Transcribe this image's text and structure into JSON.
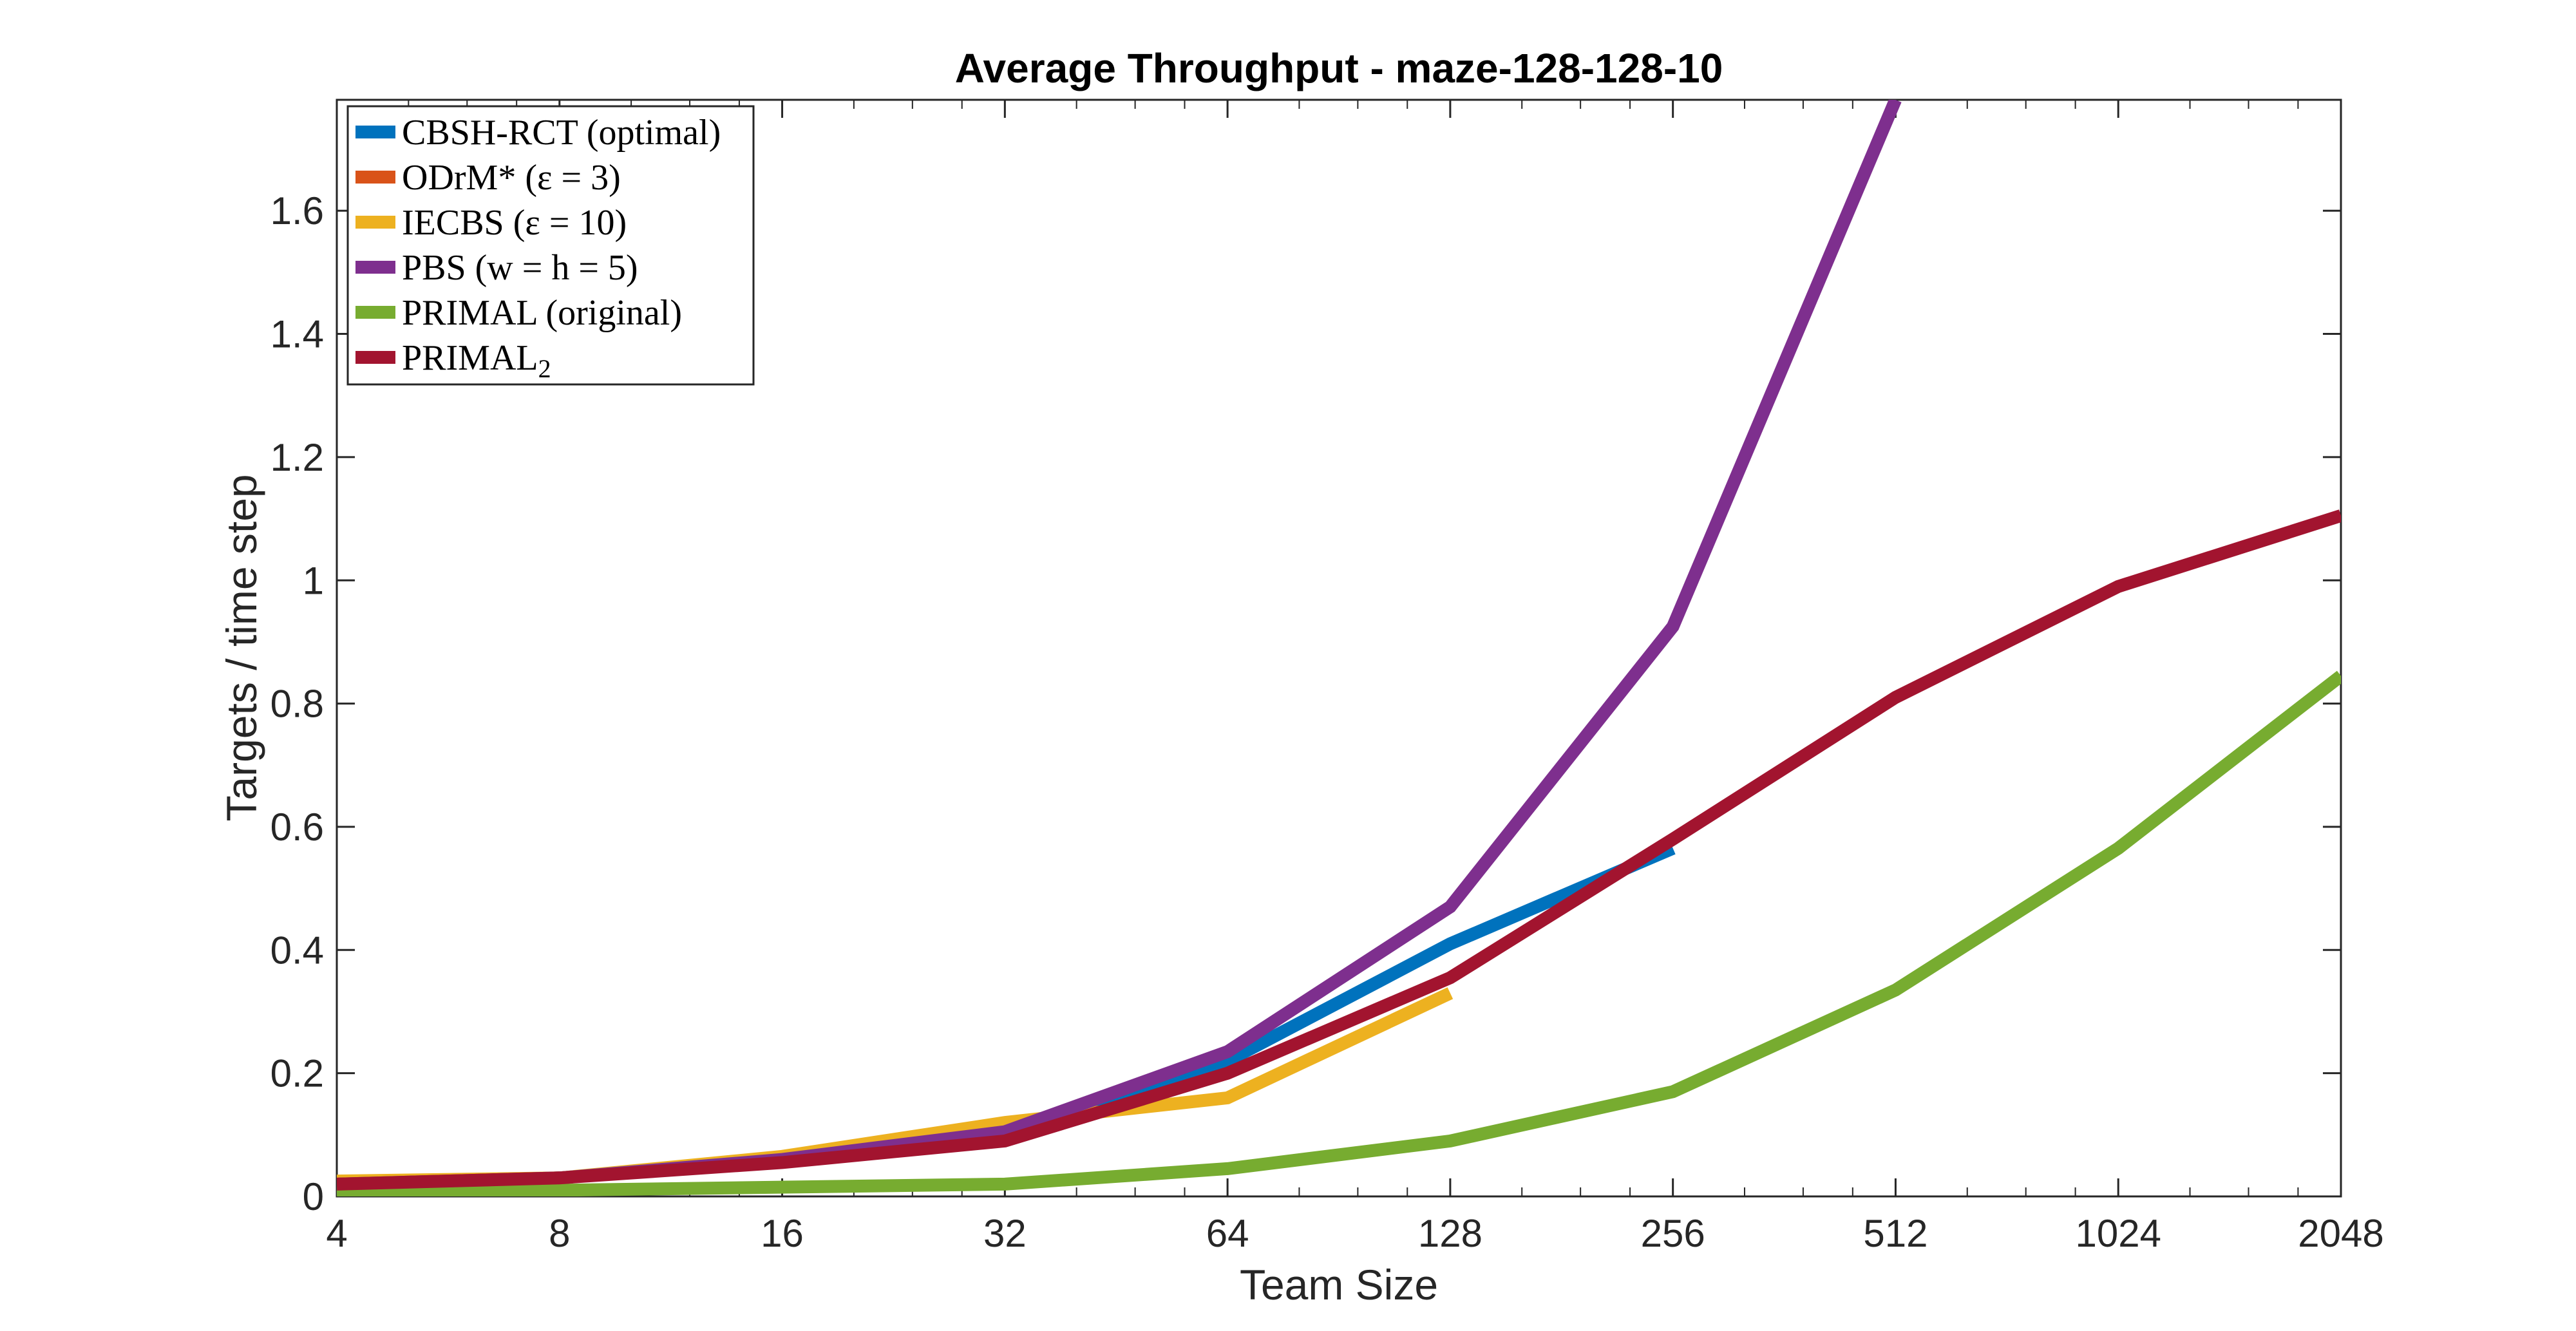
{
  "chart_data": {
    "type": "line",
    "title": "Average Throughput - maze-128-128-10",
    "xlabel": "Team Size",
    "ylabel": "Targets / time step",
    "x_scale": "log2",
    "xlim": [
      4,
      2048
    ],
    "ylim": [
      0,
      1.78
    ],
    "x_ticks": [
      "4",
      "8",
      "16",
      "32",
      "64",
      "128",
      "256",
      "512",
      "1024",
      "2048"
    ],
    "y_ticks": [
      "0",
      "0.2",
      "0.4",
      "0.6",
      "0.8",
      "1",
      "1.2",
      "1.4",
      "1.6"
    ],
    "grid": false,
    "legend_position": "top-left",
    "series": [
      {
        "name": "CBSH-RCT (optimal)",
        "color": "#0072BD",
        "points": [
          [
            4,
            0.02
          ],
          [
            8,
            0.03
          ],
          [
            16,
            0.06
          ],
          [
            32,
            0.1
          ],
          [
            64,
            0.22
          ],
          [
            128,
            0.41
          ],
          [
            256,
            0.565
          ]
        ]
      },
      {
        "name": "ODrM* (ε = 3)",
        "color": "#D95319",
        "points": [
          [
            4,
            0.02
          ],
          [
            8,
            0.03
          ],
          [
            16,
            0.06
          ],
          [
            32,
            0.1
          ]
        ]
      },
      {
        "name": "IECBS (ε = 10)",
        "color": "#EDB120",
        "points": [
          [
            4,
            0.025
          ],
          [
            8,
            0.03
          ],
          [
            16,
            0.065
          ],
          [
            32,
            0.12
          ],
          [
            64,
            0.16
          ],
          [
            128,
            0.33
          ]
        ]
      },
      {
        "name": "PBS (w = h = 5)",
        "color": "#7E2F8E",
        "points": [
          [
            4,
            0.02
          ],
          [
            8,
            0.03
          ],
          [
            16,
            0.06
          ],
          [
            32,
            0.105
          ],
          [
            64,
            0.235
          ],
          [
            128,
            0.47
          ],
          [
            256,
            0.925
          ],
          [
            512,
            1.78
          ]
        ]
      },
      {
        "name": "PRIMAL (original)",
        "color": "#77AC30",
        "points": [
          [
            4,
            0.005
          ],
          [
            8,
            0.01
          ],
          [
            16,
            0.015
          ],
          [
            32,
            0.02
          ],
          [
            64,
            0.045
          ],
          [
            128,
            0.09
          ],
          [
            256,
            0.17
          ],
          [
            512,
            0.335
          ],
          [
            1024,
            0.565
          ],
          [
            2048,
            0.845
          ]
        ]
      },
      {
        "name": "PRIMAL",
        "name_subscript": "2",
        "color": "#A2142F",
        "points": [
          [
            4,
            0.02
          ],
          [
            8,
            0.03
          ],
          [
            16,
            0.055
          ],
          [
            32,
            0.09
          ],
          [
            64,
            0.2
          ],
          [
            128,
            0.355
          ],
          [
            256,
            0.58
          ],
          [
            512,
            0.81
          ],
          [
            1024,
            0.99
          ],
          [
            2048,
            1.105
          ]
        ]
      }
    ]
  }
}
